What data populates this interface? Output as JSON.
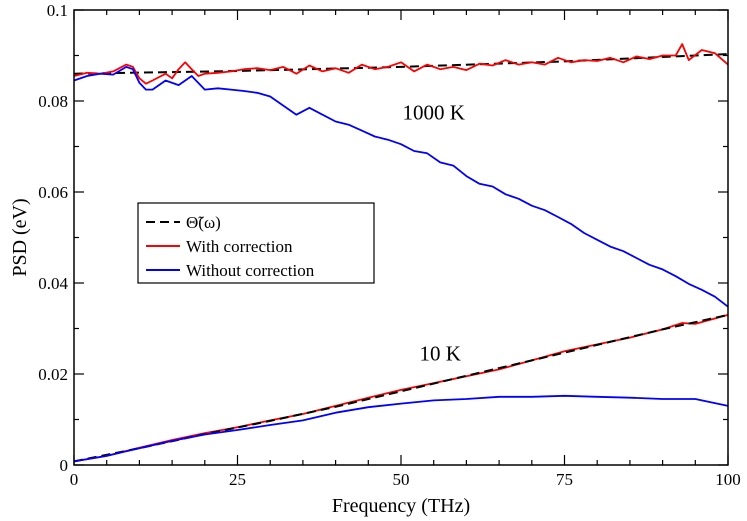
{
  "chart_data": {
    "type": "line",
    "xlabel": "Frequency (THz)",
    "ylabel": "PSD (eV)",
    "xlim": [
      0,
      100
    ],
    "ylim": [
      0,
      0.1
    ],
    "xticks": [
      0,
      25,
      50,
      75,
      100
    ],
    "xtick_labels": [
      "0",
      "25",
      "50",
      "75",
      "100"
    ],
    "yticks": [
      0,
      0.02,
      0.04,
      0.06,
      0.08,
      0.1
    ],
    "ytick_labels": [
      "0",
      "0.02",
      "0.04",
      "0.06",
      "0.08",
      "0.1"
    ],
    "grid": false,
    "legend": "center-left",
    "annotations": [
      {
        "text": "1000 K",
        "x": 55,
        "y": 0.0775
      },
      {
        "text": "10 K",
        "x": 56,
        "y": 0.0245
      }
    ],
    "series": [
      {
        "name": "Θ̃(ω)",
        "color": "#000000",
        "style": "dashed",
        "x": [
          0,
          25,
          50,
          75,
          100
        ],
        "y": [
          0.086,
          0.0866,
          0.0875,
          0.0887,
          0.0903
        ]
      },
      {
        "name": "With correction",
        "color": "#ff0000",
        "style": "solid",
        "x": [
          0,
          2,
          4,
          6,
          8,
          9,
          10,
          11,
          12,
          14,
          15,
          16,
          17,
          18,
          19,
          20,
          22,
          24,
          26,
          28,
          30,
          32,
          34,
          36,
          38,
          40,
          42,
          44,
          46,
          48,
          50,
          52,
          54,
          56,
          58,
          60,
          62,
          64,
          66,
          68,
          70,
          72,
          74,
          76,
          78,
          80,
          82,
          84,
          86,
          88,
          90,
          92,
          93,
          94,
          96,
          98,
          100
        ],
        "y": [
          0.0855,
          0.0862,
          0.086,
          0.0865,
          0.088,
          0.0875,
          0.085,
          0.0838,
          0.0845,
          0.086,
          0.085,
          0.087,
          0.0885,
          0.087,
          0.0855,
          0.086,
          0.0862,
          0.0865,
          0.087,
          0.0872,
          0.0868,
          0.0875,
          0.086,
          0.0878,
          0.0865,
          0.0872,
          0.0862,
          0.088,
          0.087,
          0.0875,
          0.0885,
          0.0865,
          0.088,
          0.087,
          0.0875,
          0.0868,
          0.0882,
          0.0878,
          0.089,
          0.088,
          0.0885,
          0.088,
          0.0895,
          0.0885,
          0.089,
          0.0888,
          0.0895,
          0.0885,
          0.0898,
          0.0892,
          0.09,
          0.09,
          0.0925,
          0.089,
          0.0912,
          0.0905,
          0.088
        ]
      },
      {
        "name": "Without correction",
        "color": "#0000ff",
        "style": "solid",
        "x": [
          0,
          2,
          4,
          6,
          8,
          9,
          10,
          11,
          12,
          14,
          16,
          18,
          20,
          22,
          24,
          26,
          28,
          30,
          32,
          34,
          36,
          38,
          40,
          42,
          44,
          46,
          48,
          50,
          52,
          54,
          56,
          58,
          60,
          62,
          64,
          66,
          68,
          70,
          72,
          74,
          76,
          78,
          80,
          82,
          84,
          86,
          88,
          90,
          92,
          94,
          96,
          98,
          100
        ],
        "y": [
          0.0845,
          0.0855,
          0.086,
          0.0858,
          0.0875,
          0.087,
          0.084,
          0.0825,
          0.0825,
          0.0845,
          0.0835,
          0.0855,
          0.0825,
          0.0828,
          0.0825,
          0.0822,
          0.0818,
          0.081,
          0.079,
          0.077,
          0.0785,
          0.077,
          0.0755,
          0.0748,
          0.0735,
          0.0722,
          0.0715,
          0.0705,
          0.069,
          0.0685,
          0.0665,
          0.0658,
          0.0635,
          0.0618,
          0.0612,
          0.0595,
          0.0585,
          0.057,
          0.056,
          0.0545,
          0.053,
          0.051,
          0.0495,
          0.048,
          0.047,
          0.0455,
          0.044,
          0.043,
          0.0415,
          0.0398,
          0.0385,
          0.037,
          0.0348
        ]
      },
      {
        "name": "With correction",
        "color": "#ff0000",
        "style": "solid",
        "x": [
          0,
          5,
          10,
          15,
          20,
          25,
          30,
          35,
          40,
          45,
          50,
          55,
          60,
          65,
          70,
          75,
          80,
          85,
          90,
          93,
          95,
          100
        ],
        "y": [
          0.0008,
          0.002,
          0.0038,
          0.0055,
          0.007,
          0.0083,
          0.0098,
          0.0112,
          0.013,
          0.0148,
          0.0165,
          0.018,
          0.0195,
          0.021,
          0.023,
          0.025,
          0.0265,
          0.028,
          0.0298,
          0.0312,
          0.031,
          0.033
        ]
      },
      {
        "name": "Θ̃(ω)",
        "color": "#000000",
        "style": "dashed",
        "x": [
          0,
          10,
          20,
          30,
          40,
          50,
          60,
          70,
          80,
          90,
          100
        ],
        "y": [
          0.0008,
          0.0037,
          0.0068,
          0.0097,
          0.0128,
          0.0162,
          0.0196,
          0.023,
          0.0264,
          0.0298,
          0.033
        ]
      },
      {
        "name": "Without correction",
        "color": "#0000ff",
        "style": "solid",
        "x": [
          0,
          5,
          10,
          15,
          20,
          25,
          30,
          35,
          40,
          45,
          50,
          55,
          60,
          65,
          70,
          75,
          80,
          85,
          90,
          95,
          100
        ],
        "y": [
          0.0008,
          0.002,
          0.0037,
          0.0053,
          0.0067,
          0.0077,
          0.0088,
          0.0098,
          0.0115,
          0.0127,
          0.0135,
          0.0142,
          0.0145,
          0.015,
          0.015,
          0.0152,
          0.015,
          0.0148,
          0.0145,
          0.0145,
          0.013
        ]
      }
    ],
    "legend_entries": [
      {
        "label": "Θ̃(ω)",
        "color": "#000000",
        "style": "dashed"
      },
      {
        "label": "With correction",
        "color": "#ff0000",
        "style": "solid"
      },
      {
        "label": "Without correction",
        "color": "#0000ff",
        "style": "solid"
      }
    ]
  }
}
